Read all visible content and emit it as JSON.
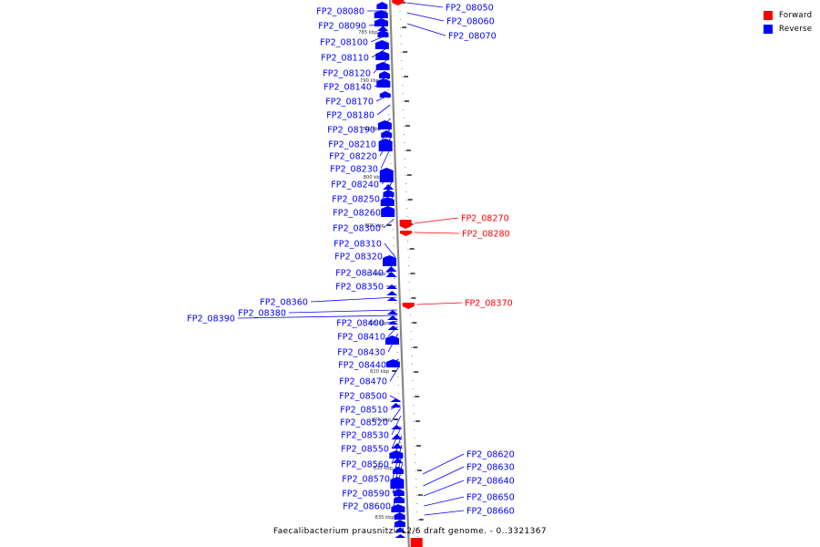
{
  "caption": "Faecalibacterium prausnitzii L2/6 draft genome. - 0..3321367",
  "legend": [
    {
      "label": "Forward",
      "color": "#ff0000"
    },
    {
      "label": "Reverse",
      "color": "#0000ff"
    }
  ],
  "colors": {
    "forward": "#ff0000",
    "reverse": "#0000ff",
    "backbone": "#888888",
    "tick": "#000000"
  },
  "scale_labels": [
    "785 kbp",
    "790 kbp",
    "795 kbp",
    "800 kbp",
    "805 kbp",
    "810 kbp",
    "815 kbp",
    "820 kbp",
    "825 kbp",
    "830 kbp",
    "835 kbp"
  ],
  "reverse_genes": [
    "FP2_08080",
    "FP2_08090",
    "FP2_08100",
    "FP2_08110",
    "FP2_08120",
    "FP2_08140",
    "FP2_08170",
    "FP2_08180",
    "FP2_08190",
    "FP2_08210",
    "FP2_08220",
    "FP2_08230",
    "FP2_08240",
    "FP2_08250",
    "FP2_08260",
    "FP2_08300",
    "FP2_08310",
    "FP2_08320",
    "FP2_08340",
    "FP2_08350",
    "FP2_08360",
    "FP2_08380",
    "FP2_08390",
    "FP2_08400",
    "FP2_08410",
    "FP2_08430",
    "FP2_08440",
    "FP2_08470",
    "FP2_08500",
    "FP2_08510",
    "FP2_08520",
    "FP2_08530",
    "FP2_08550",
    "FP2_08560",
    "FP2_08570",
    "FP2_08590",
    "FP2_08600"
  ],
  "forward_genes": [
    "FP2_08050",
    "FP2_08060",
    "FP2_08070",
    "FP2_08270",
    "FP2_08280",
    "FP2_08370",
    "FP2_08620",
    "FP2_08630",
    "FP2_08640",
    "FP2_08650",
    "FP2_08660"
  ]
}
